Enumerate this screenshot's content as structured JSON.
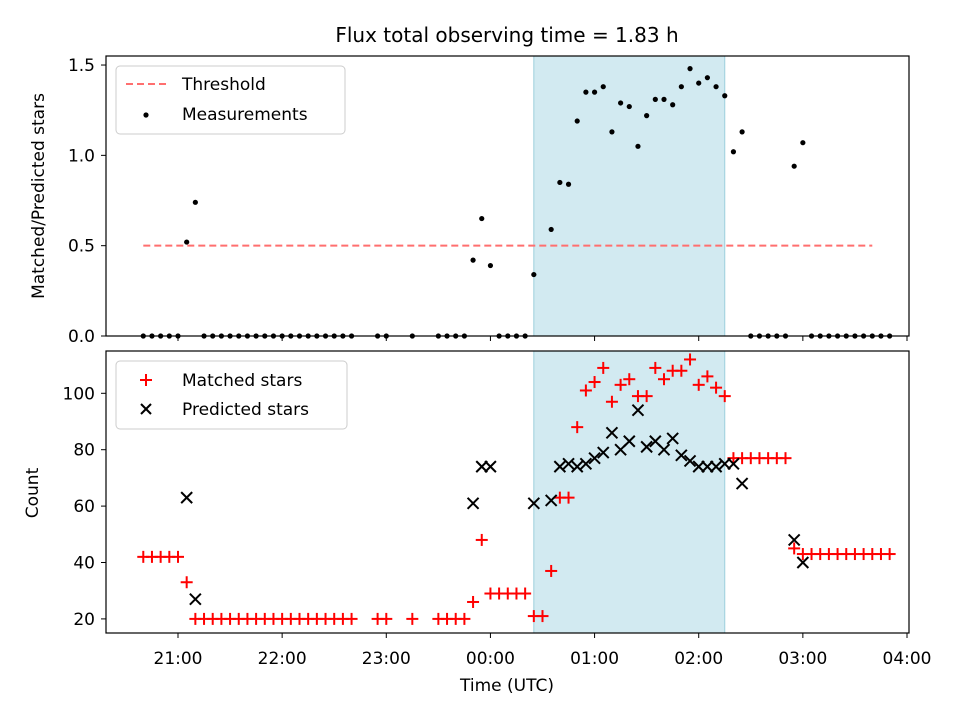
{
  "chart_data": [
    {
      "type": "scatter",
      "title": "Flux total observing time = 1.83 h",
      "xlabel": "",
      "ylabel": "Matched/Predicted stars",
      "ylim": [
        0,
        1.55
      ],
      "yticks": [
        "0.0",
        "0.5",
        "1.0",
        "1.5"
      ],
      "legend": {
        "position": "top-left",
        "entries": [
          "Threshold",
          "Measurements"
        ]
      },
      "highlight_span": {
        "start": "00:25",
        "end": "02:15",
        "color": "#add8e6"
      },
      "threshold": {
        "name": "Threshold",
        "value": 0.5,
        "x_start": "20:40",
        "x_end": "03:40",
        "color": "#ff6f6f"
      },
      "series": [
        {
          "name": "Measurements",
          "color": "#000000",
          "points": [
            [
              "20:40",
              0
            ],
            [
              "20:45",
              0
            ],
            [
              "20:50",
              0
            ],
            [
              "20:55",
              0
            ],
            [
              "21:00",
              0
            ],
            [
              "21:05",
              0.52
            ],
            [
              "21:10",
              0.74
            ],
            [
              "21:15",
              0
            ],
            [
              "21:20",
              0
            ],
            [
              "21:25",
              0
            ],
            [
              "21:30",
              0
            ],
            [
              "21:35",
              0
            ],
            [
              "21:40",
              0
            ],
            [
              "21:45",
              0
            ],
            [
              "21:50",
              0
            ],
            [
              "21:55",
              0
            ],
            [
              "22:00",
              0
            ],
            [
              "22:05",
              0
            ],
            [
              "22:10",
              0
            ],
            [
              "22:15",
              0
            ],
            [
              "22:20",
              0
            ],
            [
              "22:25",
              0
            ],
            [
              "22:30",
              0
            ],
            [
              "22:35",
              0
            ],
            [
              "22:40",
              0
            ],
            [
              "22:55",
              0
            ],
            [
              "23:00",
              0
            ],
            [
              "23:15",
              0
            ],
            [
              "23:30",
              0
            ],
            [
              "23:35",
              0
            ],
            [
              "23:40",
              0
            ],
            [
              "23:45",
              0
            ],
            [
              "23:50",
              0.42
            ],
            [
              "23:55",
              0.65
            ],
            [
              "00:00",
              0.39
            ],
            [
              "00:05",
              0
            ],
            [
              "00:10",
              0
            ],
            [
              "00:15",
              0
            ],
            [
              "00:20",
              0
            ],
            [
              "00:25",
              0.34
            ],
            [
              "00:35",
              0.59
            ],
            [
              "00:40",
              0.85
            ],
            [
              "00:45",
              0.84
            ],
            [
              "00:50",
              1.19
            ],
            [
              "00:55",
              1.35
            ],
            [
              "01:00",
              1.35
            ],
            [
              "01:05",
              1.38
            ],
            [
              "01:10",
              1.13
            ],
            [
              "01:15",
              1.29
            ],
            [
              "01:20",
              1.27
            ],
            [
              "01:25",
              1.05
            ],
            [
              "01:30",
              1.22
            ],
            [
              "01:35",
              1.31
            ],
            [
              "01:40",
              1.31
            ],
            [
              "01:45",
              1.28
            ],
            [
              "01:50",
              1.38
            ],
            [
              "01:55",
              1.48
            ],
            [
              "02:00",
              1.4
            ],
            [
              "02:05",
              1.43
            ],
            [
              "02:10",
              1.38
            ],
            [
              "02:15",
              1.33
            ],
            [
              "02:20",
              1.02
            ],
            [
              "02:25",
              1.13
            ],
            [
              "02:30",
              0
            ],
            [
              "02:35",
              0
            ],
            [
              "02:40",
              0
            ],
            [
              "02:45",
              0
            ],
            [
              "02:50",
              0
            ],
            [
              "02:55",
              0.94
            ],
            [
              "03:00",
              1.07
            ],
            [
              "03:05",
              0
            ],
            [
              "03:10",
              0
            ],
            [
              "03:15",
              0
            ],
            [
              "03:20",
              0
            ],
            [
              "03:25",
              0
            ],
            [
              "03:30",
              0
            ],
            [
              "03:35",
              0
            ],
            [
              "03:40",
              0
            ],
            [
              "03:45",
              0
            ],
            [
              "03:50",
              0
            ]
          ]
        }
      ]
    },
    {
      "type": "scatter",
      "title": "",
      "xlabel": "Time (UTC)",
      "ylabel": "Count",
      "ylim": [
        15,
        115
      ],
      "yticks": [
        "20",
        "40",
        "60",
        "80",
        "100"
      ],
      "xticks": [
        "21:00",
        "22:00",
        "23:00",
        "00:00",
        "01:00",
        "02:00",
        "03:00",
        "04:00"
      ],
      "legend": {
        "position": "top-left",
        "entries": [
          "Matched stars",
          "Predicted stars"
        ]
      },
      "highlight_span": {
        "start": "00:25",
        "end": "02:15",
        "color": "#add8e6"
      },
      "series": [
        {
          "name": "Matched stars",
          "marker": "plus",
          "color": "#ff0000",
          "points": [
            [
              "20:40",
              42
            ],
            [
              "20:45",
              42
            ],
            [
              "20:50",
              42
            ],
            [
              "20:55",
              42
            ],
            [
              "21:00",
              42
            ],
            [
              "21:05",
              33
            ],
            [
              "21:10",
              20
            ],
            [
              "21:15",
              20
            ],
            [
              "21:20",
              20
            ],
            [
              "21:25",
              20
            ],
            [
              "21:30",
              20
            ],
            [
              "21:35",
              20
            ],
            [
              "21:40",
              20
            ],
            [
              "21:45",
              20
            ],
            [
              "21:50",
              20
            ],
            [
              "21:55",
              20
            ],
            [
              "22:00",
              20
            ],
            [
              "22:05",
              20
            ],
            [
              "22:10",
              20
            ],
            [
              "22:15",
              20
            ],
            [
              "22:20",
              20
            ],
            [
              "22:25",
              20
            ],
            [
              "22:30",
              20
            ],
            [
              "22:35",
              20
            ],
            [
              "22:40",
              20
            ],
            [
              "22:55",
              20
            ],
            [
              "23:00",
              20
            ],
            [
              "23:15",
              20
            ],
            [
              "23:30",
              20
            ],
            [
              "23:35",
              20
            ],
            [
              "23:40",
              20
            ],
            [
              "23:45",
              20
            ],
            [
              "23:50",
              26
            ],
            [
              "23:55",
              48
            ],
            [
              "00:00",
              29
            ],
            [
              "00:05",
              29
            ],
            [
              "00:10",
              29
            ],
            [
              "00:15",
              29
            ],
            [
              "00:20",
              29
            ],
            [
              "00:25",
              21
            ],
            [
              "00:30",
              21
            ],
            [
              "00:35",
              37
            ],
            [
              "00:40",
              63
            ],
            [
              "00:45",
              63
            ],
            [
              "00:50",
              88
            ],
            [
              "00:55",
              101
            ],
            [
              "01:00",
              104
            ],
            [
              "01:05",
              109
            ],
            [
              "01:10",
              97
            ],
            [
              "01:15",
              103
            ],
            [
              "01:20",
              105
            ],
            [
              "01:25",
              99
            ],
            [
              "01:30",
              99
            ],
            [
              "01:35",
              109
            ],
            [
              "01:40",
              105
            ],
            [
              "01:45",
              108
            ],
            [
              "01:50",
              108
            ],
            [
              "01:55",
              112
            ],
            [
              "02:00",
              103
            ],
            [
              "02:05",
              106
            ],
            [
              "02:10",
              102
            ],
            [
              "02:15",
              99
            ],
            [
              "02:20",
              77
            ],
            [
              "02:25",
              77
            ],
            [
              "02:30",
              77
            ],
            [
              "02:35",
              77
            ],
            [
              "02:40",
              77
            ],
            [
              "02:45",
              77
            ],
            [
              "02:50",
              77
            ],
            [
              "02:55",
              45
            ],
            [
              "03:00",
              43
            ],
            [
              "03:05",
              43
            ],
            [
              "03:10",
              43
            ],
            [
              "03:15",
              43
            ],
            [
              "03:20",
              43
            ],
            [
              "03:25",
              43
            ],
            [
              "03:30",
              43
            ],
            [
              "03:35",
              43
            ],
            [
              "03:40",
              43
            ],
            [
              "03:45",
              43
            ],
            [
              "03:50",
              43
            ]
          ]
        },
        {
          "name": "Predicted stars",
          "marker": "x",
          "color": "#000000",
          "points": [
            [
              "21:05",
              63
            ],
            [
              "21:10",
              27
            ],
            [
              "23:50",
              61
            ],
            [
              "23:55",
              74
            ],
            [
              "00:00",
              74
            ],
            [
              "00:25",
              61
            ],
            [
              "00:35",
              62
            ],
            [
              "00:40",
              74
            ],
            [
              "00:45",
              75
            ],
            [
              "00:50",
              74
            ],
            [
              "00:55",
              75
            ],
            [
              "01:00",
              77
            ],
            [
              "01:05",
              79
            ],
            [
              "01:10",
              86
            ],
            [
              "01:15",
              80
            ],
            [
              "01:20",
              83
            ],
            [
              "01:25",
              94
            ],
            [
              "01:30",
              81
            ],
            [
              "01:35",
              83
            ],
            [
              "01:40",
              80
            ],
            [
              "01:45",
              84
            ],
            [
              "01:50",
              78
            ],
            [
              "01:55",
              76
            ],
            [
              "02:00",
              74
            ],
            [
              "02:05",
              74
            ],
            [
              "02:10",
              74
            ],
            [
              "02:15",
              75
            ],
            [
              "02:20",
              75
            ],
            [
              "02:25",
              68
            ],
            [
              "02:55",
              48
            ],
            [
              "03:00",
              40
            ]
          ]
        }
      ]
    }
  ]
}
